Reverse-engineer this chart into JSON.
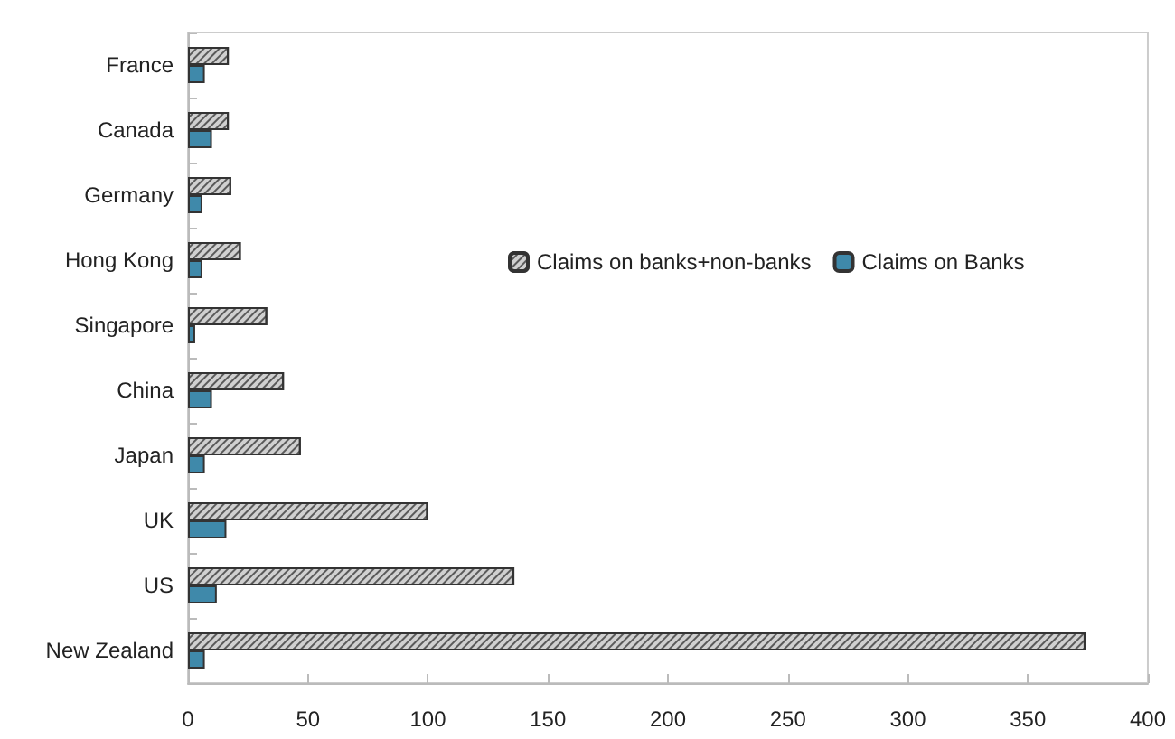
{
  "chart_data": {
    "type": "bar",
    "orientation": "horizontal",
    "categories": [
      "France",
      "Canada",
      "Germany",
      "Hong Kong",
      "Singapore",
      "China",
      "Japan",
      "UK",
      "US",
      "New Zealand"
    ],
    "series": [
      {
        "name": "Claims on banks+non-banks",
        "color": "#d0d0d0",
        "values": [
          17,
          17,
          18,
          22,
          33,
          40,
          47,
          100,
          136,
          374
        ]
      },
      {
        "name": "Claims on Banks",
        "color": "#3f89aa",
        "values": [
          7,
          10,
          6,
          6,
          3,
          10,
          7,
          16,
          12,
          7
        ]
      }
    ],
    "xlim": [
      0,
      400
    ],
    "xticks": [
      0,
      50,
      100,
      150,
      200,
      250,
      300,
      350,
      400
    ],
    "grid": false,
    "legend": "right"
  }
}
